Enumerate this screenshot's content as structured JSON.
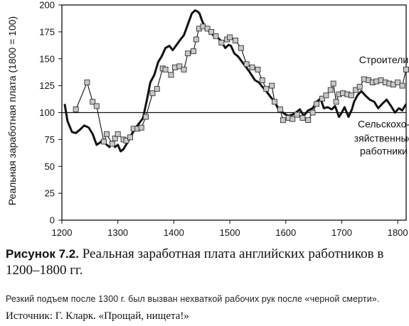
{
  "chart_data": {
    "type": "line",
    "ylabel": "Реальная заработная плата (1800 = 100)",
    "xlim": [
      1200,
      1815
    ],
    "ylim": [
      0,
      200
    ],
    "xticks": [
      1200,
      1300,
      1400,
      1500,
      1600,
      1700,
      1800
    ],
    "yticks": [
      0,
      25,
      50,
      75,
      100,
      125,
      150,
      175,
      200
    ],
    "reference_line": 100,
    "grid": false,
    "series": [
      {
        "name": "Строители",
        "style": "thin line with square markers",
        "color": "#111111",
        "marker_color": "#c8c8c8",
        "x": [
          1225,
          1245,
          1255,
          1262,
          1275,
          1280,
          1290,
          1295,
          1300,
          1310,
          1315,
          1322,
          1328,
          1335,
          1342,
          1350,
          1362,
          1370,
          1380,
          1385,
          1395,
          1402,
          1410,
          1418,
          1425,
          1435,
          1440,
          1445,
          1452,
          1460,
          1467,
          1475,
          1485,
          1495,
          1500,
          1510,
          1520,
          1530,
          1540,
          1550,
          1558,
          1565,
          1575,
          1580,
          1590,
          1595,
          1605,
          1612,
          1620,
          1630,
          1640,
          1648,
          1655,
          1665,
          1672,
          1680,
          1685,
          1690,
          1695,
          1702,
          1710,
          1717,
          1725,
          1732,
          1740,
          1748,
          1755,
          1762,
          1770,
          1778,
          1785,
          1792,
          1800,
          1808,
          1815
        ],
        "y": [
          103,
          128,
          110,
          106,
          73,
          80,
          71,
          76,
          80,
          75,
          74,
          77,
          85,
          85,
          86,
          96,
          118,
          122,
          141,
          140,
          135,
          142,
          143,
          140,
          155,
          157,
          168,
          178,
          180,
          178,
          175,
          171,
          165,
          168,
          170,
          167,
          160,
          145,
          142,
          140,
          130,
          122,
          125,
          110,
          103,
          93,
          95,
          94,
          98,
          95,
          93,
          100,
          108,
          113,
          116,
          121,
          127,
          110,
          117,
          118,
          117,
          116,
          121,
          124,
          131,
          130,
          128,
          129,
          130,
          128,
          127,
          126,
          128,
          125,
          140
        ]
      },
      {
        "name": "Сельскохо-зяйственные работники",
        "style": "thick line",
        "color": "#111111",
        "x": [
          1205,
          1210,
          1218,
          1225,
          1232,
          1240,
          1248,
          1255,
          1262,
          1268,
          1272,
          1278,
          1285,
          1290,
          1295,
          1300,
          1305,
          1310,
          1318,
          1325,
          1332,
          1338,
          1345,
          1352,
          1358,
          1365,
          1372,
          1378,
          1385,
          1392,
          1398,
          1405,
          1412,
          1418,
          1425,
          1432,
          1438,
          1442,
          1446,
          1450,
          1455,
          1460,
          1465,
          1470,
          1478,
          1485,
          1492,
          1498,
          1502,
          1508,
          1515,
          1522,
          1528,
          1535,
          1540,
          1545,
          1552,
          1558,
          1565,
          1572,
          1580,
          1588,
          1595,
          1600,
          1605,
          1612,
          1618,
          1625,
          1632,
          1640,
          1648,
          1655,
          1662,
          1668,
          1675,
          1682,
          1688,
          1695,
          1700,
          1705,
          1712,
          1718,
          1722,
          1728,
          1735,
          1742,
          1750,
          1758,
          1765,
          1772,
          1780,
          1788,
          1795,
          1802,
          1808,
          1815
        ],
        "y": [
          108,
          92,
          82,
          81,
          84,
          88,
          86,
          80,
          70,
          72,
          74,
          71,
          68,
          72,
          68,
          70,
          64,
          66,
          73,
          80,
          86,
          90,
          95,
          112,
          128,
          135,
          147,
          152,
          160,
          162,
          158,
          163,
          168,
          172,
          182,
          192,
          195,
          194,
          192,
          186,
          180,
          177,
          175,
          172,
          170,
          166,
          160,
          163,
          162,
          155,
          152,
          147,
          143,
          138,
          134,
          130,
          128,
          124,
          120,
          115,
          110,
          102,
          100,
          98,
          97,
          98,
          100,
          103,
          97,
          102,
          104,
          110,
          113,
          104,
          105,
          103,
          106,
          96,
          100,
          105,
          96,
          103,
          110,
          116,
          120,
          116,
          112,
          110,
          104,
          108,
          112,
          106,
          100,
          104,
          102,
          108
        ]
      }
    ],
    "annotations": [
      {
        "text": "Строители",
        "x": 1775,
        "y": 146
      },
      {
        "text": "Сельскохо-",
        "x": 1775,
        "y": 86
      },
      {
        "text": "зяйственные",
        "x": 1775,
        "y": 73
      },
      {
        "text": "работники",
        "x": 1775,
        "y": 61
      }
    ]
  },
  "caption": {
    "figure_label": "Рисунок 7.2.",
    "text": "Реальная заработная плата английских работников в 1200–1800 гг."
  },
  "note": "Резкий подъем после 1300 г. был вызван нехваткой рабочих рук после «черной смерти».",
  "source": "Источник: Г. Кларк. «Прощай, нищета!»"
}
